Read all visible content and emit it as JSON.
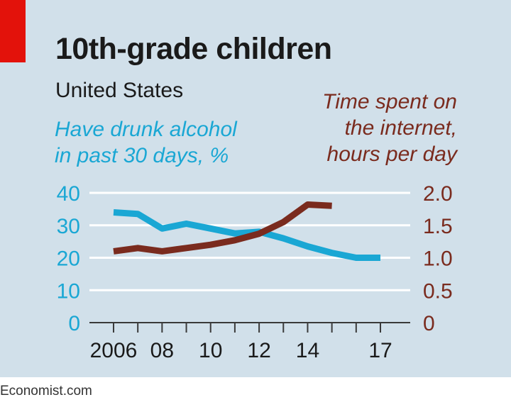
{
  "header": {
    "title": "10th-grade children",
    "subtitle": "United States",
    "accent_color": "#e3120b"
  },
  "footer": {
    "source": "Economist.com"
  },
  "chart_data": {
    "type": "line",
    "title": "10th-grade children",
    "subtitle": "United States",
    "x_tick_labels": [
      "2006",
      "08",
      "10",
      "12",
      "14",
      "17"
    ],
    "x_ticks": [
      2006,
      2007,
      2008,
      2009,
      2010,
      2011,
      2012,
      2013,
      2014,
      2015,
      2016,
      2017
    ],
    "xlim": [
      2005.8,
      2017.2
    ],
    "y_left": {
      "label_lines": [
        "Have drunk alcohol",
        "in past 30 days, %"
      ],
      "ticks": [
        "40",
        "30",
        "20",
        "10",
        "0"
      ],
      "ylim": [
        0,
        40
      ],
      "color": "#1aa7d4"
    },
    "y_right": {
      "label_lines": [
        "Time spent on",
        "the internet,",
        "hours per day"
      ],
      "ticks": [
        "2.0",
        "1.5",
        "1.0",
        "0.5",
        "0"
      ],
      "ylim": [
        0,
        2.0
      ],
      "color": "#7a2b1e"
    },
    "grid": true,
    "series": [
      {
        "axis": "left",
        "color": "#1aa7d4",
        "x": [
          2006,
          2007,
          2008,
          2009,
          2010,
          2011,
          2012,
          2013,
          2014,
          2015,
          2016,
          2017
        ],
        "y": [
          34,
          33.5,
          29,
          30.5,
          29,
          27.5,
          28,
          26,
          23.5,
          21.5,
          20,
          20
        ]
      },
      {
        "axis": "right",
        "color": "#7a2b1e",
        "x": [
          2006,
          2007,
          2008,
          2009,
          2010,
          2011,
          2012,
          2013,
          2014,
          2015
        ],
        "y": [
          1.1,
          1.15,
          1.1,
          1.15,
          1.2,
          1.27,
          1.37,
          1.55,
          1.82,
          1.8
        ]
      }
    ]
  }
}
